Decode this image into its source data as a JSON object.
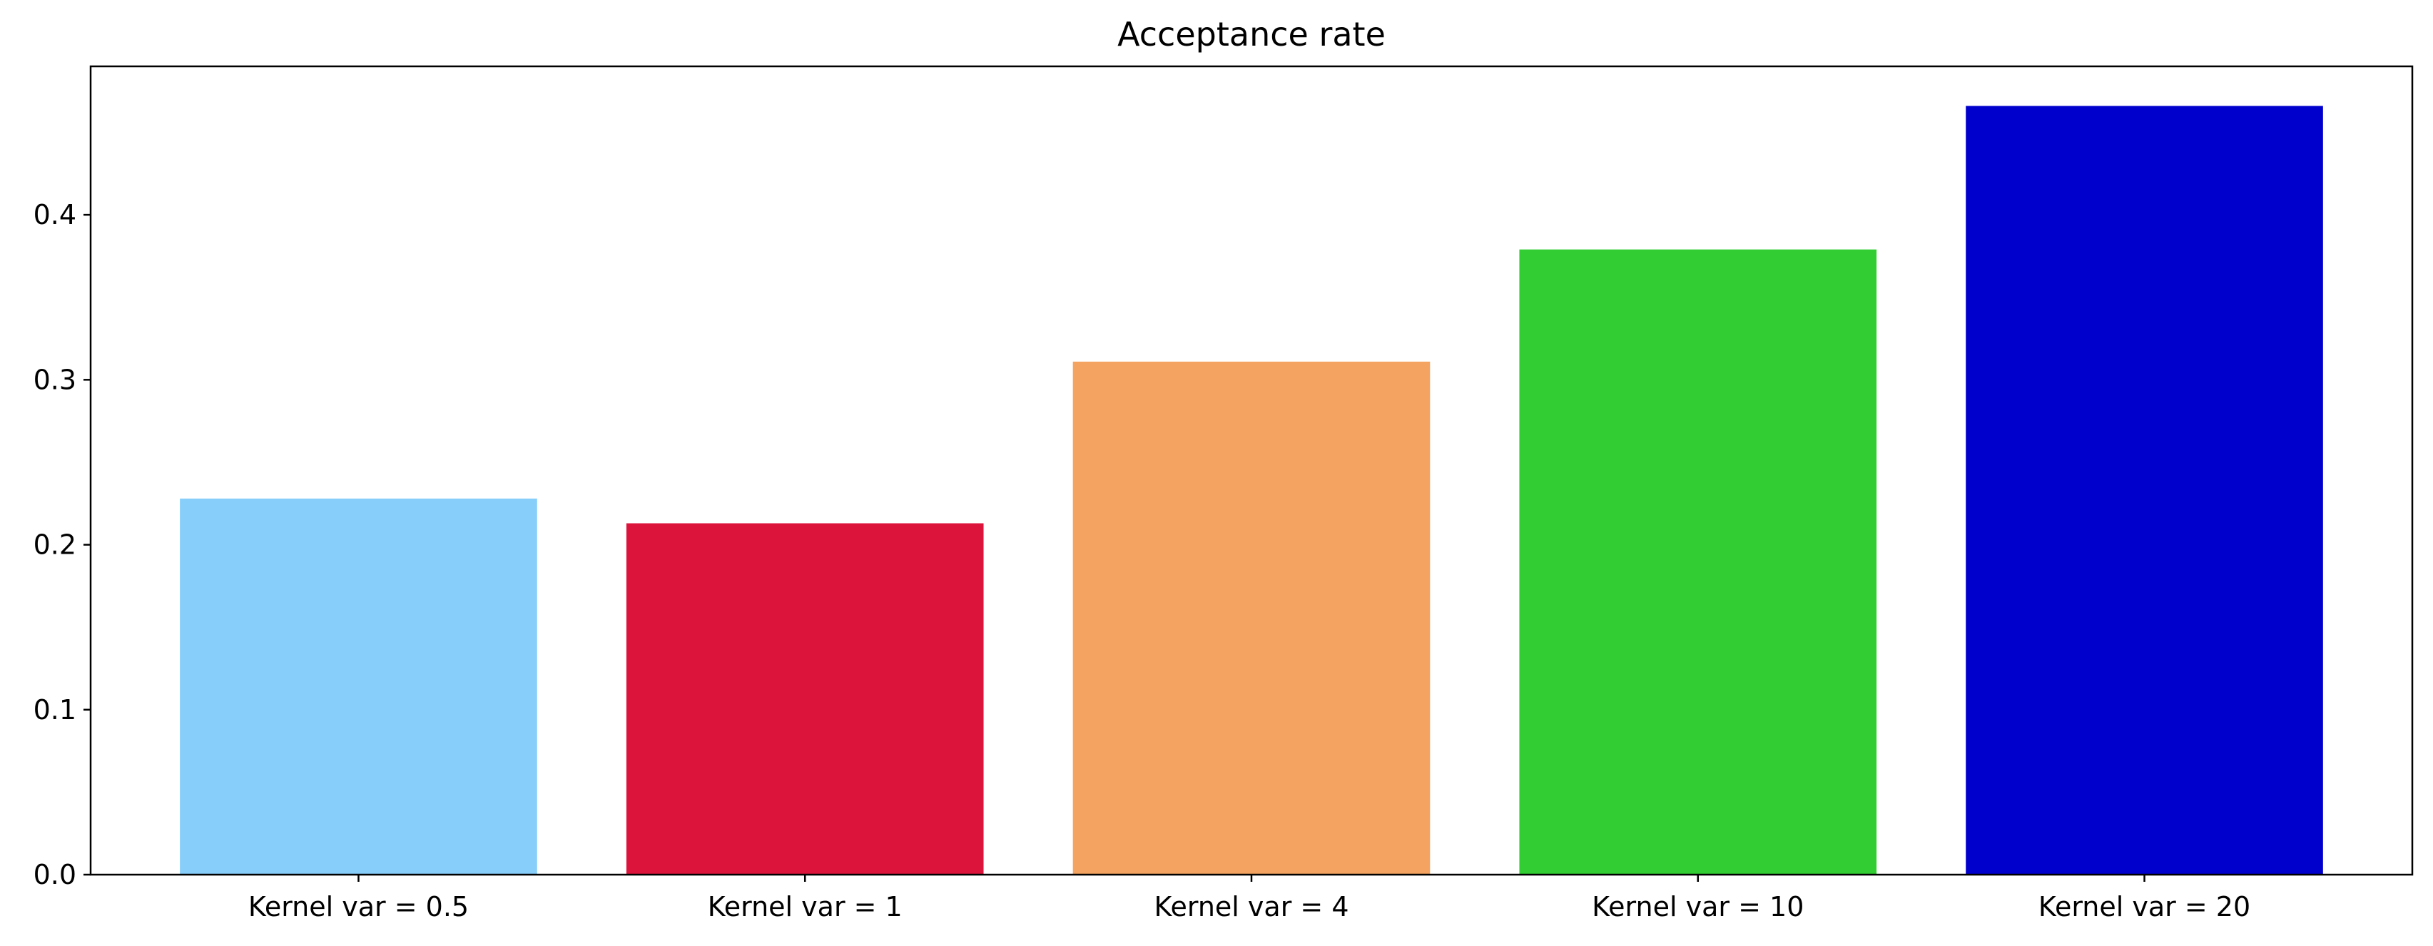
{
  "chart_data": {
    "type": "bar",
    "title": "Acceptance rate",
    "xlabel": "",
    "ylabel": "",
    "categories": [
      "Kernel var = 0.5",
      "Kernel var = 1",
      "Kernel var = 4",
      "Kernel var = 10",
      "Kernel var = 20"
    ],
    "values": [
      0.228,
      0.213,
      0.311,
      0.379,
      0.466
    ],
    "colors": [
      "#87CEFA",
      "#DC143C",
      "#F4A460",
      "#32CD32",
      "#0000CD"
    ],
    "ylim": [
      0,
      0.49
    ],
    "yticks": [
      0.0,
      0.1,
      0.2,
      0.3,
      0.4
    ],
    "ytick_labels": [
      "0.0",
      "0.1",
      "0.2",
      "0.3",
      "0.4"
    ],
    "grid": false,
    "legend": "none"
  }
}
